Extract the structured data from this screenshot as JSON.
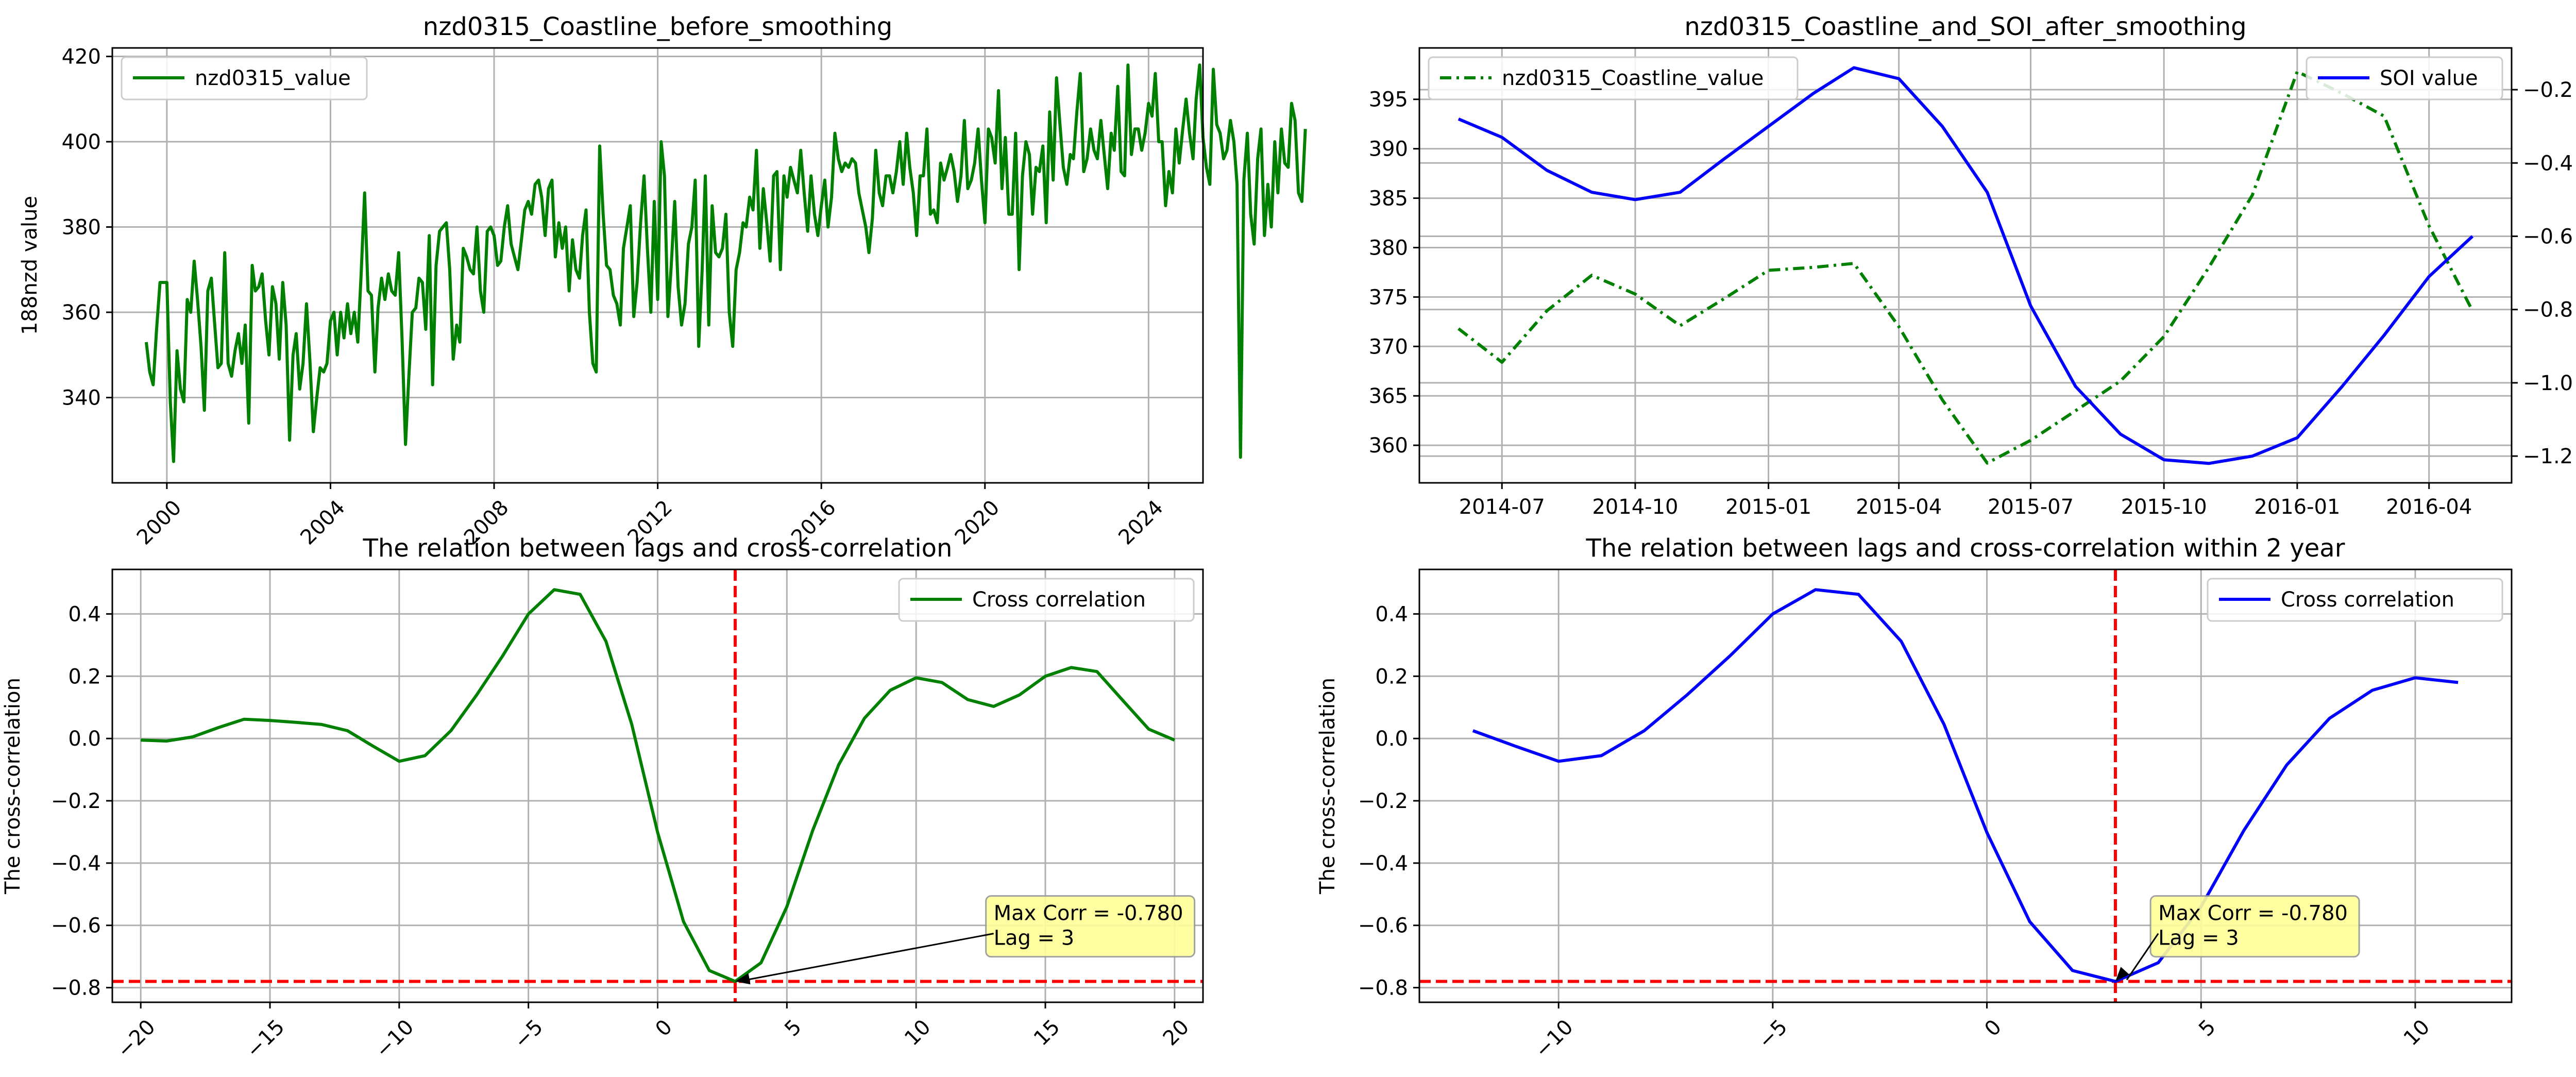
{
  "chart_data": [
    {
      "type": "line",
      "title": "nzd0315_Coastline_before_smoothing",
      "xlabel": "",
      "ylabel": "188nzd value",
      "x_axis_kind": "date",
      "x_tick_values": [
        "2000-01-01",
        "2004-01-01",
        "2008-01-01",
        "2012-01-01",
        "2016-01-01",
        "2020-01-01",
        "2024-01-01"
      ],
      "x_tick_labels": [
        "2000",
        "2004",
        "2008",
        "2012",
        "2016",
        "2020",
        "2024"
      ],
      "x_tick_rotation": 45,
      "xlim": [
        "1998-09-01",
        "2025-05-01"
      ],
      "ylim": [
        320,
        422
      ],
      "y_ticks": [
        340,
        360,
        380,
        400,
        420
      ],
      "grid": true,
      "legend_position": "upper-left",
      "series": [
        {
          "name": "nzd0315_value",
          "color": "#008000",
          "linestyle": "solid",
          "x_start": "1999-07",
          "x_step": "1 month",
          "values": [
            353,
            346,
            343,
            356,
            367,
            367,
            367,
            339,
            325,
            351,
            342,
            339,
            363,
            360,
            372,
            363,
            352,
            337,
            365,
            368,
            358,
            347,
            348,
            374,
            348,
            345,
            351,
            355,
            348,
            357,
            334,
            371,
            365,
            366,
            369,
            358,
            350,
            366,
            362,
            349,
            367,
            357,
            330,
            350,
            355,
            342,
            348,
            362,
            349,
            332,
            340,
            347,
            346,
            348,
            358,
            360,
            350,
            360,
            354,
            362,
            355,
            360,
            353,
            369,
            388,
            365,
            364,
            346,
            361,
            368,
            363,
            369,
            365,
            364,
            374,
            354,
            329,
            345,
            360,
            361,
            368,
            367,
            356,
            378,
            343,
            371,
            379,
            380,
            381,
            370,
            349,
            357,
            353,
            375,
            373,
            370,
            369,
            380,
            365,
            360,
            379,
            380,
            378,
            371,
            372,
            380,
            385,
            376,
            373,
            370,
            377,
            384,
            386,
            383,
            390,
            391,
            387,
            378,
            389,
            391,
            373,
            381,
            375,
            380,
            365,
            377,
            370,
            368,
            378,
            384,
            360,
            348,
            346,
            399,
            383,
            371,
            370,
            364,
            362,
            357,
            375,
            380,
            385,
            359,
            367,
            381,
            392,
            375,
            360,
            386,
            363,
            400,
            392,
            359,
            371,
            386,
            366,
            357,
            362,
            376,
            380,
            391,
            352,
            370,
            392,
            357,
            385,
            374,
            373,
            375,
            383,
            360,
            352,
            370,
            374,
            381,
            380,
            387,
            384,
            398,
            375,
            389,
            381,
            372,
            392,
            393,
            370,
            392,
            387,
            394,
            391,
            388,
            398,
            388,
            379,
            392,
            383,
            378,
            385,
            391,
            380,
            387,
            402,
            396,
            393,
            395,
            394,
            396,
            395,
            388,
            384,
            380,
            374,
            382,
            398,
            388,
            385,
            392,
            392,
            388,
            393,
            400,
            390,
            402,
            394,
            388,
            378,
            392,
            392,
            403,
            383,
            384,
            381,
            395,
            391,
            394,
            397,
            393,
            386,
            392,
            405,
            389,
            391,
            395,
            403,
            391,
            381,
            403,
            401,
            395,
            412,
            389,
            401,
            383,
            383,
            402,
            370,
            392,
            400,
            397,
            383,
            394,
            393,
            399,
            381,
            407,
            391,
            415,
            404,
            394,
            390,
            397,
            396,
            407,
            416,
            393,
            396,
            403,
            398,
            396,
            405,
            397,
            389,
            402,
            398,
            413,
            393,
            392,
            418,
            397,
            403,
            403,
            398,
            402,
            409,
            406,
            416,
            400,
            400,
            385,
            393,
            388,
            403,
            395,
            403,
            410,
            402,
            396,
            410,
            418,
            401,
            394,
            390,
            417,
            404,
            402,
            396,
            398,
            405,
            400,
            390,
            326,
            391,
            402,
            383,
            376,
            396,
            403,
            378,
            390,
            380,
            400,
            388,
            403,
            395,
            394,
            409,
            405,
            388,
            386,
            403
          ]
        }
      ]
    },
    {
      "type": "line",
      "title": "nzd0315_Coastline_and_SOI_after_smoothing",
      "xlabel": "",
      "ylabel": "",
      "y2label": "SOI value",
      "x_axis_kind": "date",
      "x_tick_values": [
        "2014-07-01",
        "2014-10-01",
        "2015-01-01",
        "2015-04-01",
        "2015-07-01",
        "2015-10-01",
        "2016-01-01",
        "2016-04-01"
      ],
      "x_tick_labels": [
        "2014-07",
        "2014-10",
        "2015-01",
        "2015-04",
        "2015-07",
        "2015-10",
        "2016-01",
        "2016-04"
      ],
      "xlim": [
        "2014-05-05",
        "2016-05-28"
      ],
      "ylim": [
        356.2,
        400.2
      ],
      "y_ticks": [
        360,
        365,
        370,
        375,
        380,
        385,
        390,
        395
      ],
      "y2lim": [
        -1.273,
        -0.086
      ],
      "y2_ticks": [
        -1.2,
        -1.0,
        -0.8,
        -0.6,
        -0.4,
        -0.2
      ],
      "grid": true,
      "series": [
        {
          "name": "nzd0315_Coastline_value",
          "axis": "left",
          "color": "#008000",
          "linestyle": "dashdot",
          "legend_position": "upper-left",
          "x": [
            "2014-06-01",
            "2014-07-01",
            "2014-08-01",
            "2014-09-01",
            "2014-10-01",
            "2014-11-01",
            "2014-12-01",
            "2015-01-01",
            "2015-02-01",
            "2015-03-01",
            "2015-04-01",
            "2015-05-01",
            "2015-06-01",
            "2015-07-01",
            "2015-08-01",
            "2015-09-01",
            "2015-10-01",
            "2015-11-01",
            "2015-12-01",
            "2016-01-01",
            "2016-02-01",
            "2016-03-01",
            "2016-04-01",
            "2016-05-01"
          ],
          "values": [
            371.8,
            368.4,
            373.6,
            377.2,
            375.3,
            372.1,
            374.8,
            377.7,
            378.0,
            378.4,
            372.0,
            364.6,
            358.2,
            360.5,
            363.5,
            366.5,
            371.0,
            378.0,
            385.3,
            397.8,
            395.6,
            393.3,
            382.2,
            373.6
          ]
        },
        {
          "name": "SOI value",
          "axis": "right",
          "color": "#0000ff",
          "linestyle": "solid",
          "legend_position": "upper-right",
          "x": [
            "2014-06-01",
            "2014-07-01",
            "2014-08-01",
            "2014-09-01",
            "2014-10-01",
            "2014-11-01",
            "2014-12-01",
            "2015-01-01",
            "2015-02-01",
            "2015-03-01",
            "2015-04-01",
            "2015-05-01",
            "2015-06-01",
            "2015-07-01",
            "2015-08-01",
            "2015-09-01",
            "2015-10-01",
            "2015-11-01",
            "2015-12-01",
            "2016-01-01",
            "2016-02-01",
            "2016-03-01",
            "2016-04-01",
            "2016-05-01"
          ],
          "values": [
            -0.28,
            -0.33,
            -0.42,
            -0.48,
            -0.5,
            -0.48,
            -0.39,
            -0.3,
            -0.21,
            -0.14,
            -0.17,
            -0.3,
            -0.48,
            -0.79,
            -1.01,
            -1.14,
            -1.21,
            -1.22,
            -1.2,
            -1.15,
            -1.01,
            -0.87,
            -0.71,
            -0.6
          ]
        }
      ]
    },
    {
      "type": "line",
      "title": "The relation between lags and cross-correlation",
      "xlabel": "",
      "ylabel": "The cross-correlation",
      "xlim": [
        -21.1,
        21.1
      ],
      "ylim": [
        -0.847,
        0.543
      ],
      "x_ticks": [
        -20,
        -15,
        -10,
        -5,
        0,
        5,
        10,
        15,
        20
      ],
      "x_tick_rotation": 45,
      "y_ticks": [
        -0.8,
        -0.6,
        -0.4,
        -0.2,
        0.0,
        0.2,
        0.4
      ],
      "grid": true,
      "legend_position": "upper-right",
      "series": [
        {
          "name": "Cross correlation",
          "color": "#008000",
          "linestyle": "solid",
          "x": [
            -20,
            -19,
            -18,
            -17,
            -16,
            -15,
            -14,
            -13,
            -12,
            -11,
            -10,
            -9,
            -8,
            -7,
            -6,
            -5,
            -4,
            -3,
            -2,
            -1,
            0,
            1,
            2,
            3,
            4,
            5,
            6,
            7,
            8,
            9,
            10,
            11,
            12,
            13,
            14,
            15,
            16,
            17,
            18,
            19,
            20
          ],
          "values": [
            -0.005,
            -0.008,
            0.005,
            0.035,
            0.062,
            0.058,
            0.052,
            0.045,
            0.025,
            -0.025,
            -0.073,
            -0.055,
            0.025,
            0.14,
            0.265,
            0.4,
            0.478,
            0.463,
            0.312,
            0.045,
            -0.302,
            -0.588,
            -0.745,
            -0.78,
            -0.72,
            -0.54,
            -0.295,
            -0.085,
            0.065,
            0.155,
            0.195,
            0.18,
            0.125,
            0.103,
            0.14,
            0.2,
            0.228,
            0.215,
            0.122,
            0.03,
            -0.005
          ]
        }
      ],
      "reference_lines": {
        "vertical_x": 3,
        "horizontal_y": -0.78,
        "color": "#ff0000",
        "linestyle": "dashed"
      },
      "annotation": {
        "lines": [
          "Max Corr = -0.780",
          "Lag = 3"
        ],
        "point": [
          3,
          -0.78
        ],
        "text_anchor": [
          13,
          -0.58
        ],
        "box_color": "#ffff99"
      }
    },
    {
      "type": "line",
      "title": "The relation between lags and cross-correlation within 2 year",
      "xlabel": "",
      "ylabel": "The cross-correlation",
      "xlim": [
        -13.25,
        12.25
      ],
      "ylim": [
        -0.847,
        0.543
      ],
      "x_ticks": [
        -10,
        -5,
        0,
        5,
        10
      ],
      "x_tick_rotation": 45,
      "y_ticks": [
        -0.8,
        -0.6,
        -0.4,
        -0.2,
        0.0,
        0.2,
        0.4
      ],
      "grid": true,
      "legend_position": "upper-right",
      "series": [
        {
          "name": "Cross correlation",
          "color": "#0000ff",
          "linestyle": "solid",
          "x": [
            -12,
            -11,
            -10,
            -9,
            -8,
            -7,
            -6,
            -5,
            -4,
            -3,
            -2,
            -1,
            0,
            1,
            2,
            3,
            4,
            5,
            6,
            7,
            8,
            9,
            10,
            11
          ],
          "values": [
            0.025,
            -0.025,
            -0.073,
            -0.055,
            0.025,
            0.14,
            0.265,
            0.4,
            0.478,
            0.463,
            0.312,
            0.045,
            -0.302,
            -0.588,
            -0.745,
            -0.78,
            -0.72,
            -0.54,
            -0.295,
            -0.085,
            0.065,
            0.155,
            0.195,
            0.18
          ]
        }
      ],
      "reference_lines": {
        "vertical_x": 3,
        "horizontal_y": -0.78,
        "color": "#ff0000",
        "linestyle": "dashed"
      },
      "annotation": {
        "lines": [
          "Max Corr = -0.780",
          "Lag = 3"
        ],
        "point": [
          3,
          -0.78
        ],
        "text_anchor": [
          4,
          -0.58
        ],
        "box_color": "#ffff99"
      }
    }
  ]
}
